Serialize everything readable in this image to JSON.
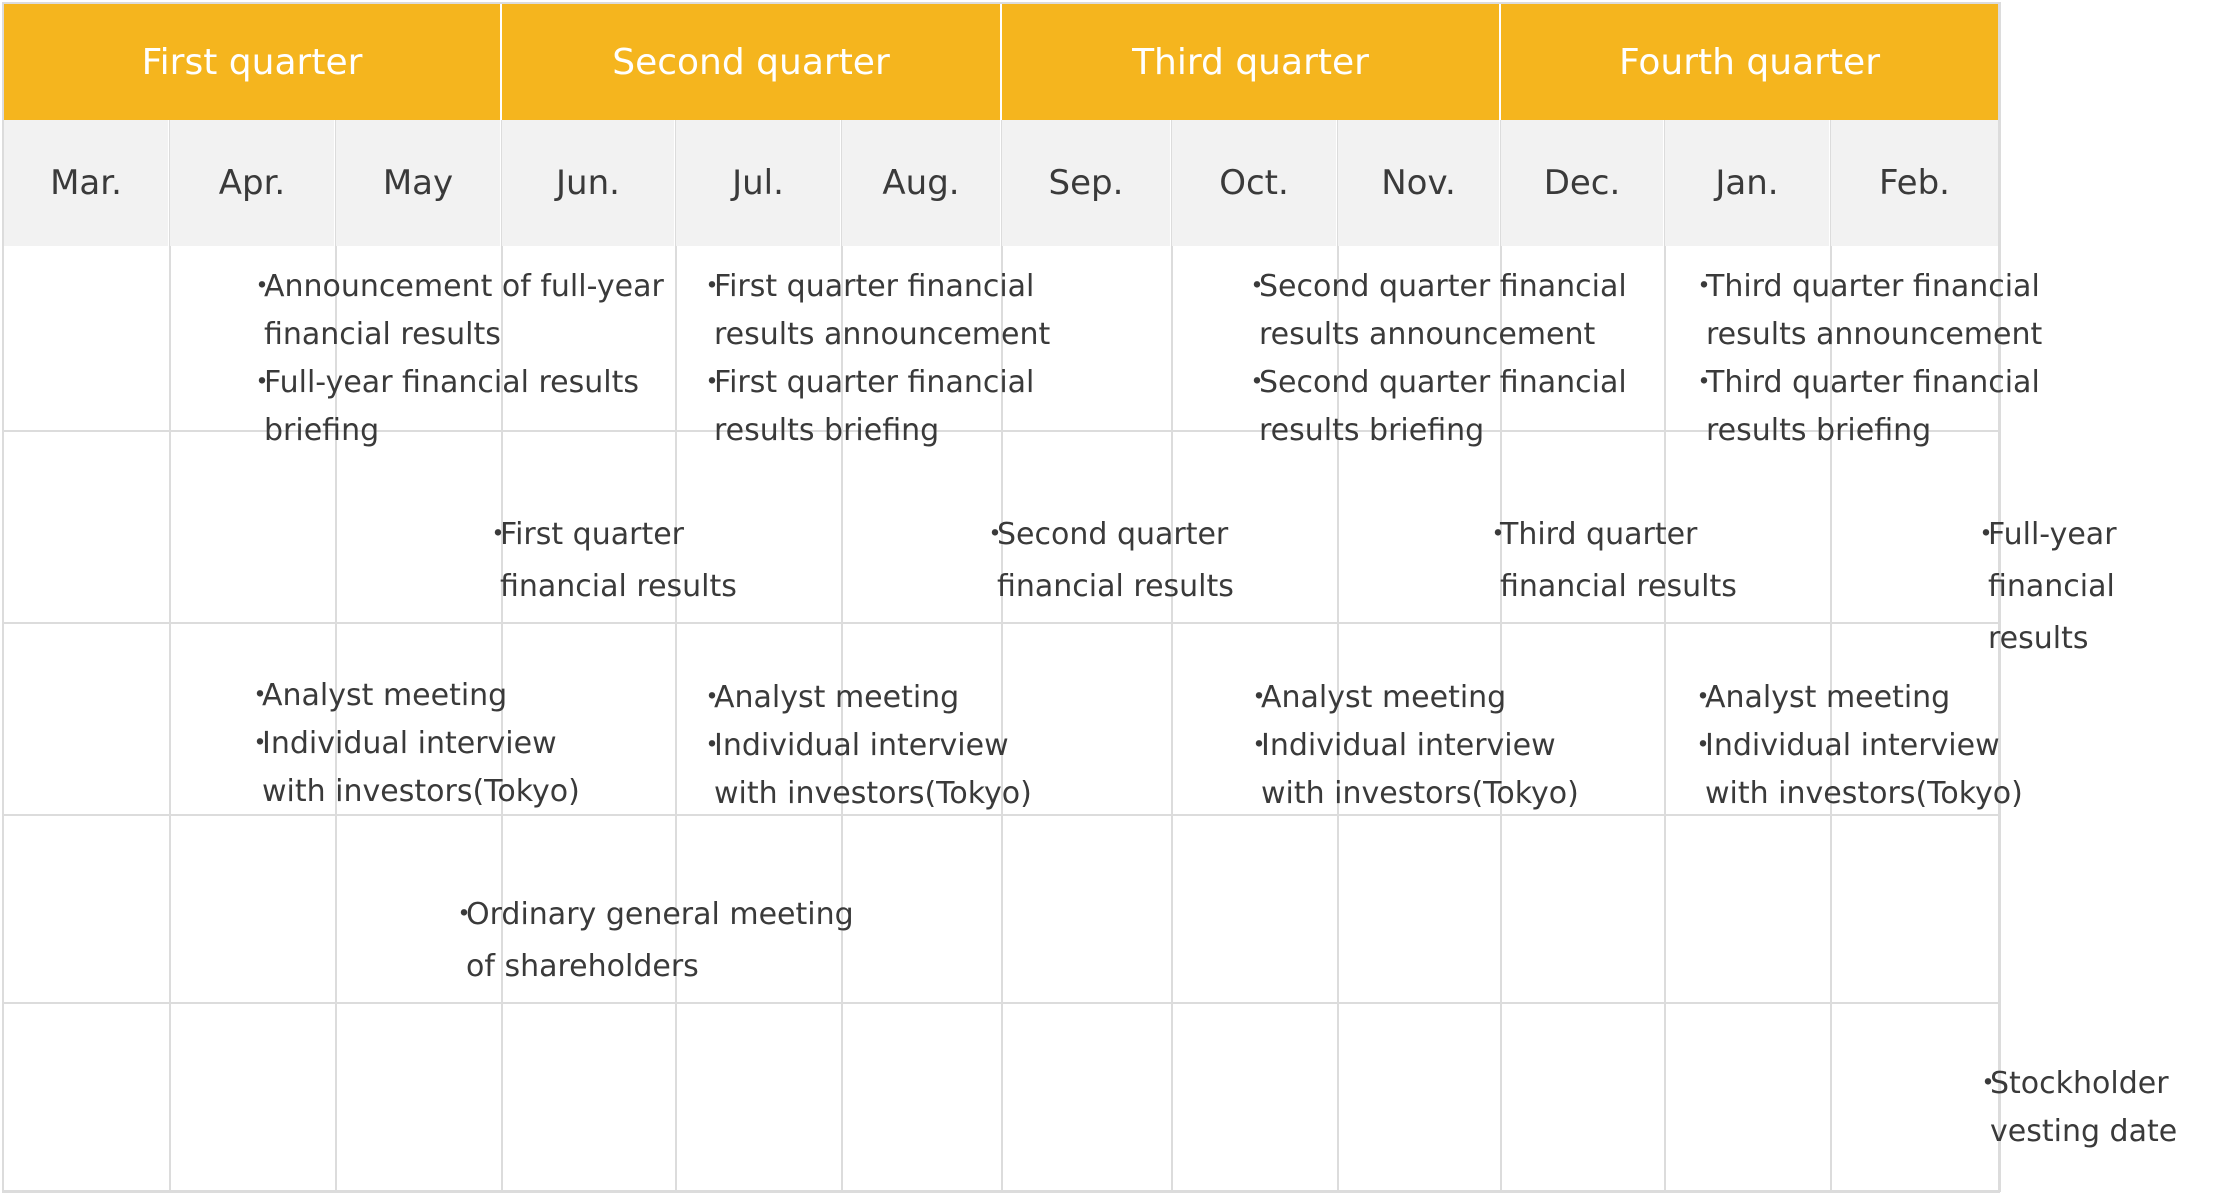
{
  "quarters": [
    {
      "label": "First quarter"
    },
    {
      "label": "Second quarter"
    },
    {
      "label": "Third quarter"
    },
    {
      "label": "Fourth quarter"
    }
  ],
  "months": [
    "Mar.",
    "Apr.",
    "May",
    "Jun.",
    "Jul.",
    "Aug.",
    "Sep.",
    "Oct.",
    "Nov.",
    "Dec.",
    "Jan.",
    "Feb."
  ],
  "colors": {
    "quarter_header": "#f5b51e",
    "month_header": "#f2f2f2",
    "grid": "#dcdcdc",
    "text": "#3a3a3a"
  },
  "bullet_glyph": "・",
  "events": [
    {
      "items": [
        [
          "Announcement of full-year",
          "financial results"
        ],
        [
          "Full-year financial results",
          "briefing"
        ]
      ]
    },
    {
      "items": [
        [
          "First quarter financial",
          "results announcement"
        ],
        [
          "First quarter financial",
          "results briefing"
        ]
      ]
    },
    {
      "items": [
        [
          "Second quarter financial",
          "results announcement"
        ],
        [
          "Second quarter financial",
          "results briefing"
        ]
      ]
    },
    {
      "items": [
        [
          "Third quarter financial",
          "results announcement"
        ],
        [
          "Third quarter financial",
          "results briefing"
        ]
      ]
    },
    {
      "items": [
        [
          "First quarter",
          "financial results"
        ]
      ]
    },
    {
      "items": [
        [
          "Second quarter",
          "financial results"
        ]
      ]
    },
    {
      "items": [
        [
          "Third quarter",
          "financial results"
        ]
      ]
    },
    {
      "items": [
        [
          "Full-year",
          "financial results"
        ]
      ]
    },
    {
      "items": [
        [
          "Analyst meeting"
        ],
        [
          "Individual interview",
          "with investors(Tokyo)"
        ]
      ]
    },
    {
      "items": [
        [
          "Analyst meeting"
        ],
        [
          "Individual interview",
          "with investors(Tokyo)"
        ]
      ]
    },
    {
      "items": [
        [
          "Analyst meeting"
        ],
        [
          "Individual interview",
          "with investors(Tokyo)"
        ]
      ]
    },
    {
      "items": [
        [
          "Analyst meeting"
        ],
        [
          "Individual interview",
          "with investors(Tokyo)"
        ]
      ]
    },
    {
      "items": [
        [
          "Ordinary general meeting",
          "of shareholders"
        ]
      ]
    },
    {
      "items": [
        [
          "Stockholder",
          "vesting date"
        ]
      ]
    }
  ]
}
